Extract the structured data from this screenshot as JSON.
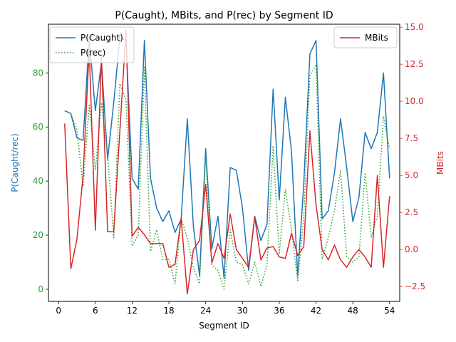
{
  "chart_data": {
    "type": "line",
    "title": "P(Caught), MBits, and P(rec) by Segment ID",
    "xlabel": "Segment ID",
    "ylabel_left": "P(Caught/rec)",
    "ylabel_right": "MBits",
    "xlim": [
      -1.65,
      55.65
    ],
    "ylim_left": [
      -4.5,
      98
    ],
    "ylim_right": [
      -3.5,
      15.2
    ],
    "xticks": [
      0,
      6,
      12,
      18,
      24,
      30,
      36,
      42,
      48,
      54
    ],
    "yticks_left": [
      0,
      20,
      40,
      60,
      80
    ],
    "yticks_right": [
      -2.5,
      0.0,
      2.5,
      5.0,
      7.5,
      10.0,
      12.5,
      15.0
    ],
    "yticks_right_labels": [
      "−2.5",
      "0.0",
      "2.5",
      "5.0",
      "7.5",
      "10.0",
      "12.5",
      "15.0"
    ],
    "legend_left_position": "upper left",
    "legend_right_position": "upper right",
    "colors": {
      "p_caught": "#1f77b4",
      "p_rec": "#2ca02c",
      "mbits": "#d62728",
      "left_axis_labels": "#2ca02c",
      "left_axis_title": "#1f77b4",
      "right_axis": "#d62728"
    },
    "x": [
      1,
      2,
      3,
      4,
      5,
      6,
      7,
      8,
      9,
      10,
      11,
      12,
      13,
      14,
      15,
      16,
      17,
      18,
      19,
      20,
      21,
      22,
      23,
      24,
      25,
      26,
      27,
      28,
      29,
      30,
      31,
      32,
      33,
      34,
      35,
      36,
      37,
      38,
      39,
      40,
      41,
      42,
      43,
      44,
      45,
      46,
      47,
      48,
      49,
      50,
      51,
      52,
      53,
      54
    ],
    "series": [
      {
        "name": "P(Caught)",
        "axis": "left",
        "style": "solid",
        "values": [
          66,
          65,
          56,
          55,
          93,
          66,
          84,
          48,
          69,
          93,
          92,
          41,
          37,
          92,
          41,
          30,
          25,
          29,
          21,
          26,
          63,
          23,
          5,
          52,
          15,
          27,
          4,
          45,
          44,
          30,
          7,
          27,
          18,
          24,
          74,
          33,
          71,
          51,
          5,
          39,
          87,
          92,
          26,
          29,
          43,
          63,
          45,
          25,
          34,
          58,
          52,
          58,
          80,
          41
        ]
      },
      {
        "name": "P(rec)",
        "axis": "left",
        "style": "dotted",
        "values": [
          66,
          65,
          59,
          38,
          68,
          44,
          69,
          50,
          19,
          76,
          70,
          16,
          20,
          82,
          14,
          22,
          11,
          11,
          2,
          26,
          19,
          8,
          2,
          49,
          9,
          7,
          0,
          22,
          10,
          9,
          2,
          10,
          1,
          9,
          53,
          13,
          37,
          22,
          3,
          27,
          79,
          83,
          11,
          19,
          29,
          44,
          12,
          10,
          12,
          43,
          19,
          27,
          64,
          52
        ]
      },
      {
        "name": "MBits",
        "axis": "right",
        "style": "solid",
        "values": [
          8.5,
          -1.3,
          0.7,
          5.0,
          13.5,
          1.3,
          13.0,
          1.2,
          1.2,
          8.0,
          14.8,
          0.9,
          1.5,
          1.0,
          0.4,
          0.4,
          0.4,
          -1.2,
          -1.0,
          2.1,
          -3.0,
          0.0,
          0.6,
          4.4,
          -0.9,
          0.4,
          -0.6,
          2.4,
          0.0,
          -0.6,
          -1.2,
          2.2,
          -0.7,
          0.1,
          0.2,
          -0.5,
          -0.6,
          1.1,
          -0.4,
          0.2,
          8.0,
          3.0,
          0.0,
          -0.7,
          0.3,
          -0.7,
          -1.2,
          -0.5,
          0.0,
          -0.5,
          -1.2,
          5.0,
          -1.2,
          3.6
        ]
      }
    ]
  }
}
